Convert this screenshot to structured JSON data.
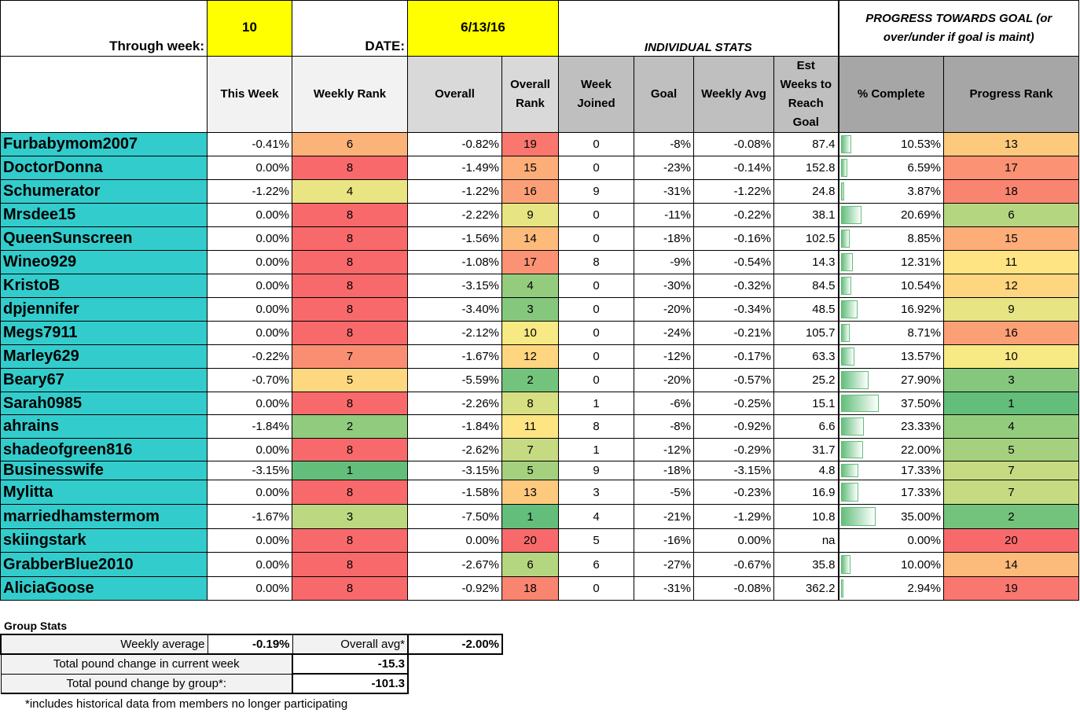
{
  "header": {
    "through_week_label": "Through week:",
    "through_week_value": "10",
    "date_label": "DATE:",
    "date_value": "6/13/16",
    "individual_stats": "INDIVIDUAL STATS",
    "progress_title": "PROGRESS TOWARDS GOAL (or over/under if goal is maint)"
  },
  "columns": [
    "This Week",
    "Weekly Rank",
    "Overall",
    "Overall Rank",
    "Week Joined",
    "Goal",
    "Weekly Avg",
    "Est Weeks to Reach Goal",
    "% Complete",
    "Progress Rank"
  ],
  "colors": {
    "name_bg": "#33cccc",
    "highlight": "#ffff00",
    "good": "#63be7b",
    "mid": "#ffeb84",
    "bad": "#f8696b"
  },
  "rows": [
    [
      "Furbabymom2007",
      "-0.41%",
      "6",
      "-0.82%",
      "19",
      "0",
      "-8%",
      "-0.08%",
      "87.4",
      "10.53%",
      "13"
    ],
    [
      "DoctorDonna",
      "0.00%",
      "8",
      "-1.49%",
      "15",
      "0",
      "-23%",
      "-0.14%",
      "152.8",
      "6.59%",
      "17"
    ],
    [
      "Schumerator",
      "-1.22%",
      "4",
      "-1.22%",
      "16",
      "9",
      "-31%",
      "-1.22%",
      "24.8",
      "3.87%",
      "18"
    ],
    [
      "Mrsdee15",
      "0.00%",
      "8",
      "-2.22%",
      "9",
      "0",
      "-11%",
      "-0.22%",
      "38.1",
      "20.69%",
      "6"
    ],
    [
      "QueenSunscreen",
      "0.00%",
      "8",
      "-1.56%",
      "14",
      "0",
      "-18%",
      "-0.16%",
      "102.5",
      "8.85%",
      "15"
    ],
    [
      "Wineo929",
      "0.00%",
      "8",
      "-1.08%",
      "17",
      "8",
      "-9%",
      "-0.54%",
      "14.3",
      "12.31%",
      "11"
    ],
    [
      "KristoB",
      "0.00%",
      "8",
      "-3.15%",
      "4",
      "0",
      "-30%",
      "-0.32%",
      "84.5",
      "10.54%",
      "12"
    ],
    [
      "dpjennifer",
      "0.00%",
      "8",
      "-3.40%",
      "3",
      "0",
      "-20%",
      "-0.34%",
      "48.5",
      "16.92%",
      "9"
    ],
    [
      "Megs7911",
      "0.00%",
      "8",
      "-2.12%",
      "10",
      "0",
      "-24%",
      "-0.21%",
      "105.7",
      "8.71%",
      "16"
    ],
    [
      "Marley629",
      "-0.22%",
      "7",
      "-1.67%",
      "12",
      "0",
      "-12%",
      "-0.17%",
      "63.3",
      "13.57%",
      "10"
    ],
    [
      "Beary67",
      "-0.70%",
      "5",
      "-5.59%",
      "2",
      "0",
      "-20%",
      "-0.57%",
      "25.2",
      "27.90%",
      "3"
    ],
    [
      "Sarah0985",
      "0.00%",
      "8",
      "-2.26%",
      "8",
      "1",
      "-6%",
      "-0.25%",
      "15.1",
      "37.50%",
      "1"
    ],
    [
      "ahrains",
      "-1.84%",
      "2",
      "-1.84%",
      "11",
      "8",
      "-8%",
      "-0.92%",
      "6.6",
      "23.33%",
      "4"
    ],
    [
      "shadeofgreen816",
      "0.00%",
      "8",
      "-2.62%",
      "7",
      "1",
      "-12%",
      "-0.29%",
      "31.7",
      "22.00%",
      "5"
    ],
    [
      "Businesswife",
      "-3.15%",
      "1",
      "-3.15%",
      "5",
      "9",
      "-18%",
      "-3.15%",
      "4.8",
      "17.33%",
      "7"
    ],
    [
      "Mylitta",
      "0.00%",
      "8",
      "-1.58%",
      "13",
      "3",
      "-5%",
      "-0.23%",
      "16.9",
      "17.33%",
      "7"
    ],
    [
      "marriedhamstermom",
      "-1.67%",
      "3",
      "-7.50%",
      "1",
      "4",
      "-21%",
      "-1.29%",
      "10.8",
      "35.00%",
      "2"
    ],
    [
      "skiingstark",
      "0.00%",
      "8",
      "0.00%",
      "20",
      "5",
      "-16%",
      "0.00%",
      "na",
      "0.00%",
      "20"
    ],
    [
      "GrabberBlue2010",
      "0.00%",
      "8",
      "-2.67%",
      "6",
      "6",
      "-27%",
      "-0.67%",
      "35.8",
      "10.00%",
      "14"
    ],
    [
      "AliciaGoose",
      "0.00%",
      "8",
      "-0.92%",
      "18",
      "0",
      "-31%",
      "-0.08%",
      "362.2",
      "2.94%",
      "19"
    ]
  ],
  "group_stats": {
    "title": "Group Stats",
    "weekly_avg_label": "Weekly  average",
    "weekly_avg": "-0.19%",
    "overall_avg_label": "Overall avg*",
    "overall_avg": "-2.00%",
    "week_change_label": "Total pound change in current week",
    "week_change": "-15.3",
    "group_change_label": "Total pound change by group*:",
    "group_change": "-101.3",
    "note": "*includes historical data from members no longer participating"
  }
}
